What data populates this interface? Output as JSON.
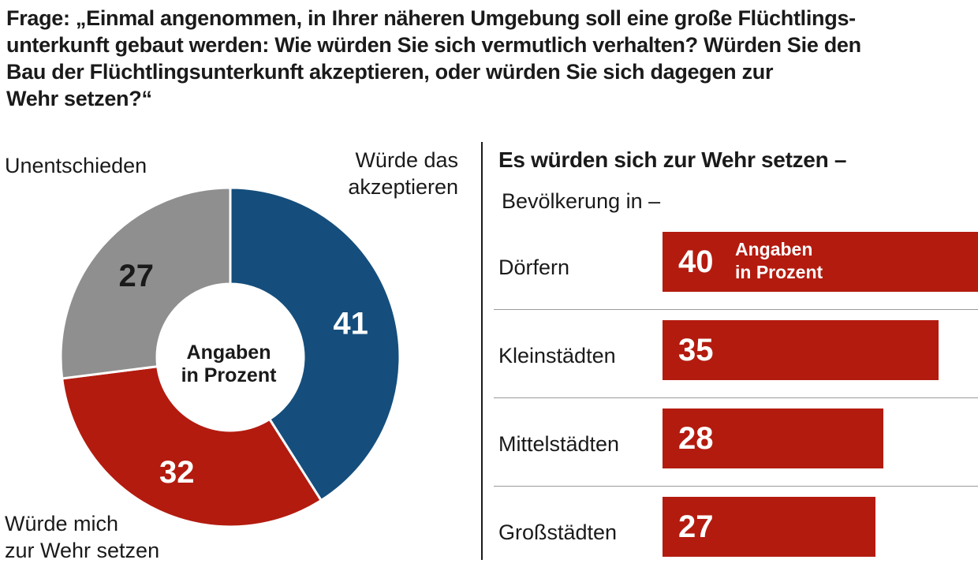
{
  "question": {
    "lines": [
      "Frage: „Einmal angenommen, in Ihrer näheren Umgebung soll eine große Flüchtlings-",
      "unterkunft gebaut werden: Wie würden Sie sich vermutlich verhalten? Würden Sie den",
      "Bau der Flüchtlingsunterkunft akzeptieren, oder würden Sie sich dagegen zur",
      "Wehr setzen?“"
    ]
  },
  "colors": {
    "blue": "#154e7c",
    "red": "#b31b0f",
    "gray": "#8f8f8f",
    "text": "#1a1a1a"
  },
  "chart_data": [
    {
      "type": "pie",
      "center_label": "Angaben in Prozent",
      "slices": [
        {
          "label": "Würde das akzeptieren",
          "value": 41,
          "color": "#154e7c"
        },
        {
          "label": "Würde mich zur Wehr setzen",
          "value": 32,
          "color": "#b31b0f"
        },
        {
          "label": "Unentschieden",
          "value": 27,
          "color": "#8f8f8f"
        }
      ],
      "labels": {
        "accept": [
          "Würde das",
          "akzeptieren"
        ],
        "resist": [
          "Würde mich",
          "zur Wehr setzen"
        ],
        "undecided": [
          "Unentschieden"
        ],
        "center": [
          "Angaben",
          "in Prozent"
        ]
      }
    },
    {
      "type": "bar",
      "title": "Es würden sich zur Wehr setzen –",
      "subtitle": "Bevölkerung in –",
      "unit_label": [
        "Angaben",
        "in Prozent"
      ],
      "categories": [
        "Dörfern",
        "Kleinstädten",
        "Mittelstädten",
        "Großstädten"
      ],
      "values": [
        40,
        35,
        28,
        27
      ],
      "xlim": [
        0,
        40
      ],
      "color": "#b31b0f"
    }
  ]
}
